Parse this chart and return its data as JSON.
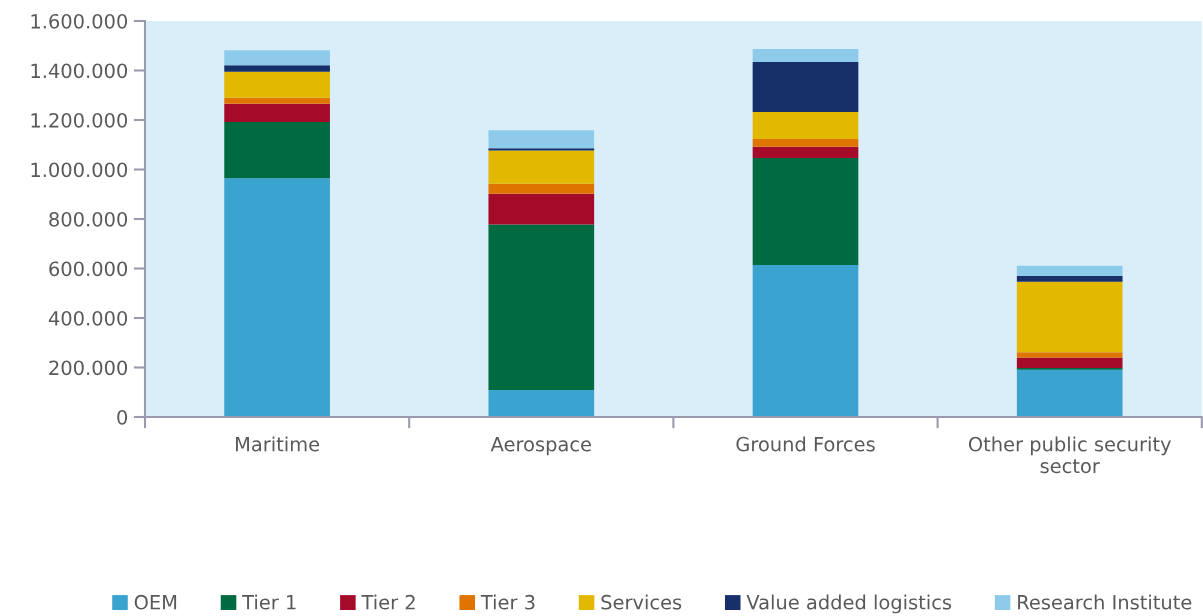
{
  "chart_data": {
    "type": "bar",
    "stacked": true,
    "categories": [
      "Maritime",
      "Aerospace",
      "Ground Forces",
      "Other public security\nsector"
    ],
    "series": [
      {
        "name": "OEM",
        "color": "#3aa3cf",
        "values": [
          965000,
          109000,
          614000,
          191000
        ]
      },
      {
        "name": "Tier 1",
        "color": "#006a40",
        "values": [
          227000,
          669000,
          432000,
          7000
        ]
      },
      {
        "name": "Tier 2",
        "color": "#a50b28",
        "values": [
          74000,
          124000,
          46000,
          42000
        ]
      },
      {
        "name": "Tier 3",
        "color": "#e07400",
        "values": [
          24000,
          40000,
          31000,
          22000
        ]
      },
      {
        "name": "Services",
        "color": "#e2b800",
        "values": [
          105000,
          135000,
          109000,
          284000
        ]
      },
      {
        "name": "Value added logistics",
        "color": "#17306a",
        "values": [
          26000,
          9000,
          202000,
          25000
        ]
      },
      {
        "name": "Research Institute",
        "color": "#8ecbeb",
        "values": [
          61000,
          73000,
          53000,
          40000
        ]
      }
    ],
    "ylim": [
      0,
      1600000
    ],
    "yticks": [
      {
        "value": 0,
        "label": "0"
      },
      {
        "value": 200000,
        "label": "200.000"
      },
      {
        "value": 400000,
        "label": "400.000"
      },
      {
        "value": 600000,
        "label": "600.000"
      },
      {
        "value": 800000,
        "label": "800.000"
      },
      {
        "value": 1000000,
        "label": "1.000.000"
      },
      {
        "value": 1200000,
        "label": "1.200.000"
      },
      {
        "value": 1400000,
        "label": "1.400.000"
      },
      {
        "value": 1600000,
        "label": "1.600.000"
      }
    ],
    "grid": false,
    "legend": "bottom"
  }
}
